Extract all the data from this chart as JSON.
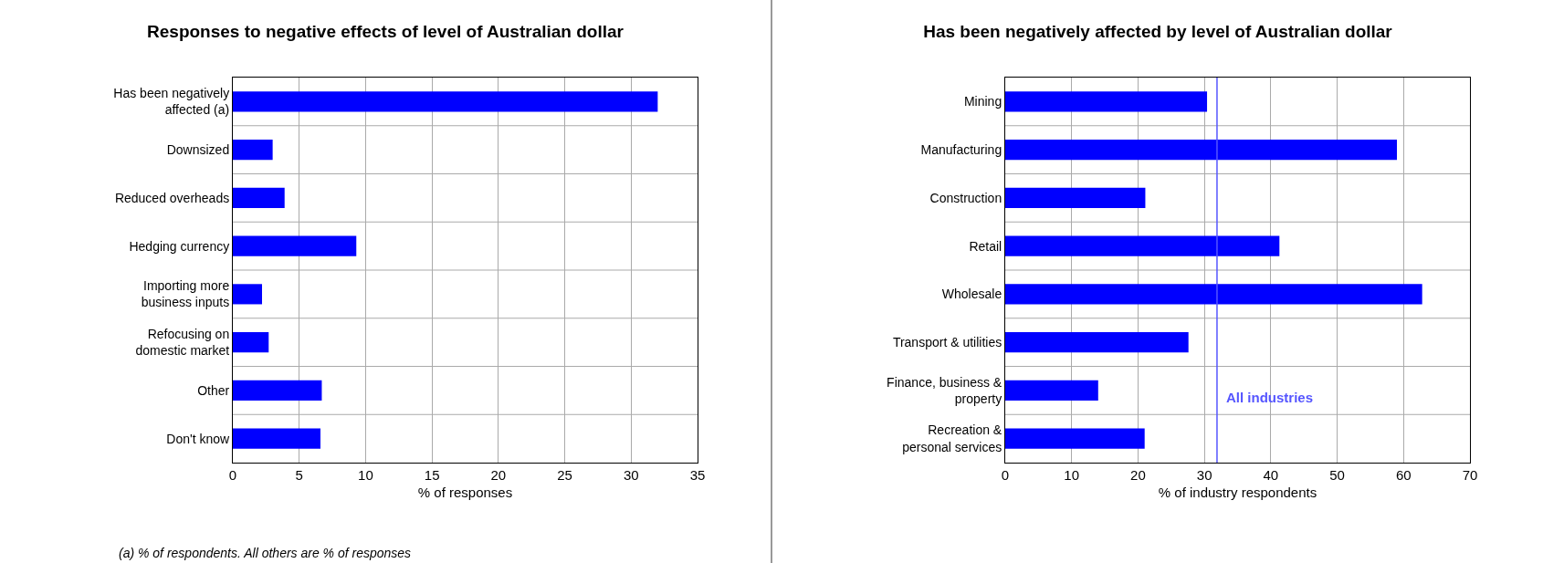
{
  "chart_data": [
    {
      "type": "bar",
      "orientation": "horizontal",
      "title": "Responses to negative effects of level of Australian dollar",
      "xlabel": "% of responses",
      "categories": [
        "Has been negatively affected (a)",
        "Downsized",
        "Reduced overheads",
        "Hedging currency",
        "Importing more business inputs",
        "Refocusing on domestic market",
        "Other",
        "Don't know"
      ],
      "values": [
        32.0,
        3.0,
        3.9,
        9.3,
        2.2,
        2.7,
        6.7,
        6.6
      ],
      "color": "#0000ff",
      "xlim": [
        0,
        35
      ],
      "xticks": [
        0,
        5,
        10,
        15,
        20,
        25,
        30,
        35
      ],
      "grid": true,
      "annotations": [
        "(a) % of respondents. All others are % of responses"
      ]
    },
    {
      "type": "bar",
      "orientation": "horizontal",
      "title": "Has been negatively affected by level of Australian dollar",
      "xlabel": "% of industry respondents",
      "categories": [
        "Mining",
        "Manufacturing",
        "Construction",
        "Retail",
        "Wholesale",
        "Transport & utilities",
        "Finance, business & property",
        "Recreation & personal services"
      ],
      "values": [
        30.4,
        59.0,
        21.1,
        41.3,
        62.8,
        27.6,
        14.0,
        21.0
      ],
      "color": "#0000ff",
      "xlim": [
        0,
        70
      ],
      "xticks": [
        0,
        10,
        20,
        30,
        40,
        50,
        60,
        70
      ],
      "grid": true,
      "ref_lines": [
        {
          "axis": "x",
          "value": 31.9,
          "label": "All industries",
          "color": "#5555ff"
        }
      ]
    }
  ]
}
